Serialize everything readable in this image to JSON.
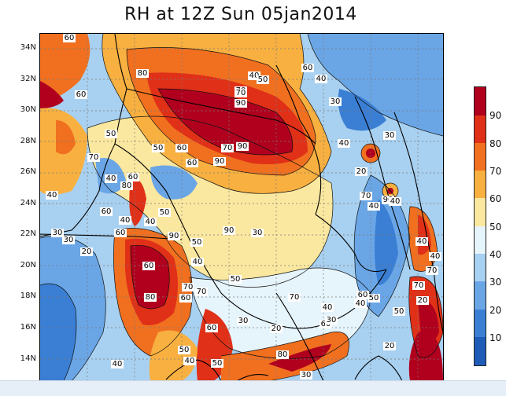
{
  "title": "RH at 12Z Sun 05jan2014",
  "y_axis_ticks": [
    "34N",
    "32N",
    "30N",
    "28N",
    "26N",
    "24N",
    "22N",
    "20N",
    "18N",
    "16N",
    "14N"
  ],
  "colorbar": {
    "labels": [
      "90",
      "80",
      "70",
      "60",
      "50",
      "40",
      "30",
      "20",
      "10"
    ],
    "colors": [
      "#b0001e",
      "#e03018",
      "#f07020",
      "#f8b040",
      "#fbe8a0",
      "#e6f4fb",
      "#a8d0f0",
      "#6aa6e6",
      "#3a7fd4",
      "#1f5cb8"
    ]
  },
  "contour_labels": [
    "60",
    "80",
    "60",
    "70",
    "90",
    "40",
    "50",
    "60",
    "40",
    "50",
    "30",
    "70",
    "60",
    "90",
    "50",
    "90",
    "70",
    "60",
    "40",
    "60",
    "40",
    "80",
    "70",
    "50",
    "40",
    "60",
    "30",
    "20",
    "30",
    "40",
    "60",
    "70",
    "80",
    "90",
    "50",
    "60",
    "40",
    "50",
    "20",
    "70",
    "40",
    "20",
    "30",
    "90",
    "40",
    "40",
    "70",
    "30",
    "60",
    "80",
    "60",
    "30",
    "40",
    "70",
    "40",
    "40",
    "50",
    "40",
    "50",
    "20",
    "70",
    "30",
    "40",
    "50",
    "90",
    "70",
    "60",
    "20",
    "40",
    "30",
    "60",
    "50"
  ],
  "colors": {
    "background": "#ffffff",
    "dark_red": "#b0001e",
    "light_blue": "#a8d0f0"
  }
}
